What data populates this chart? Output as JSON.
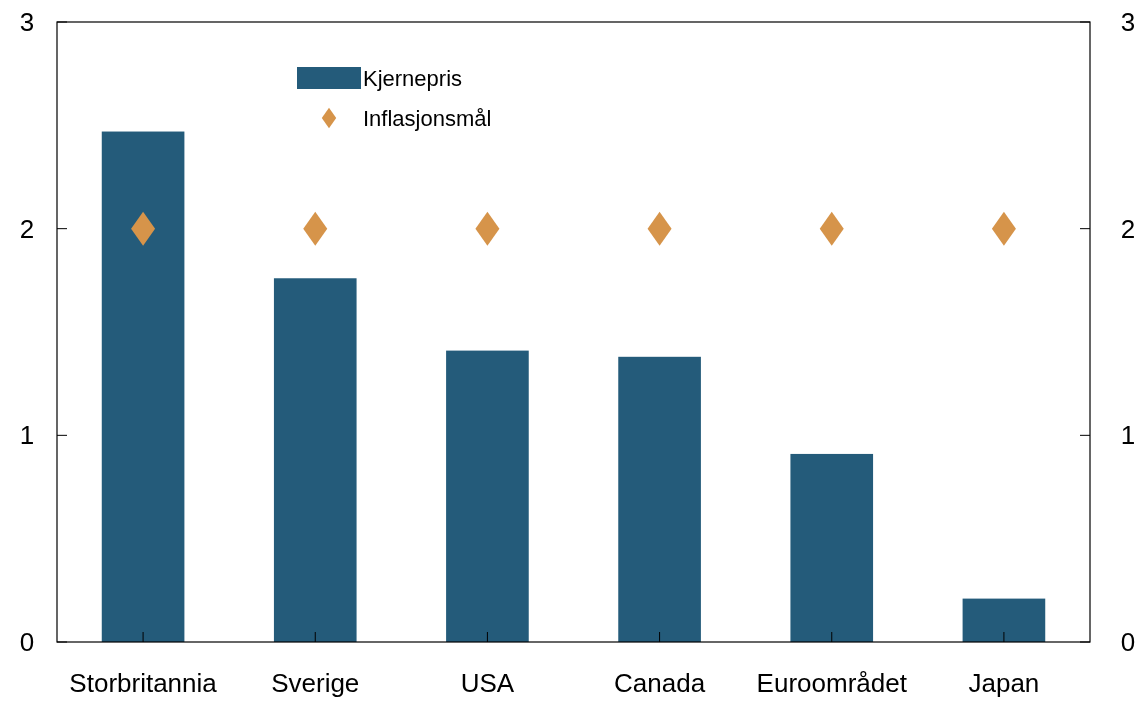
{
  "chart_data": {
    "type": "bar",
    "categories": [
      "Storbritannia",
      "Sverige",
      "USA",
      "Canada",
      "Euroområdet",
      "Japan"
    ],
    "series": [
      {
        "name": "Kjernepris",
        "color": "#245b7a",
        "values": [
          2.47,
          1.76,
          1.41,
          1.38,
          0.91,
          0.21
        ]
      },
      {
        "name": "Inflasjonsmål",
        "type": "scatter",
        "color": "#d6944a",
        "marker": "diamond",
        "values": [
          2,
          2,
          2,
          2,
          2,
          2
        ]
      }
    ],
    "ylim": [
      0,
      3
    ],
    "yticks": [
      0,
      1,
      2,
      3
    ],
    "y2lim": [
      0,
      3
    ],
    "y2ticks": [
      0,
      1,
      2,
      3
    ],
    "grid": false,
    "legend": "top left"
  }
}
